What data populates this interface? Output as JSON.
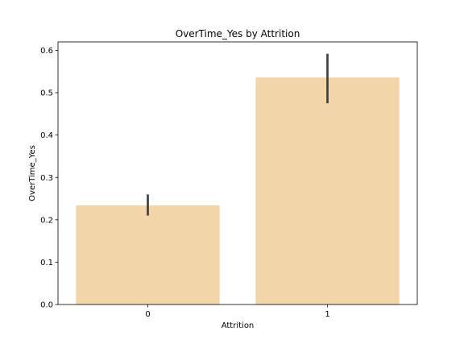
{
  "chart_data": {
    "type": "bar",
    "title": "OverTime_Yes by Attrition",
    "xlabel": "Attrition",
    "ylabel": "OverTime_Yes",
    "categories": [
      "0",
      "1"
    ],
    "values": [
      0.234,
      0.536
    ],
    "error_bars": [
      {
        "low": 0.21,
        "high": 0.26
      },
      {
        "low": 0.475,
        "high": 0.592
      }
    ],
    "ylim": [
      0,
      0.62
    ],
    "yticks": [
      0.0,
      0.1,
      0.2,
      0.3,
      0.4,
      0.5,
      0.6
    ],
    "ytick_labels": [
      "0.0",
      "0.1",
      "0.2",
      "0.3",
      "0.4",
      "0.5",
      "0.6"
    ],
    "grid": false,
    "bar_color": "#f2d6aa",
    "error_color": "#3f3f3f",
    "axis_color": "#000000"
  }
}
